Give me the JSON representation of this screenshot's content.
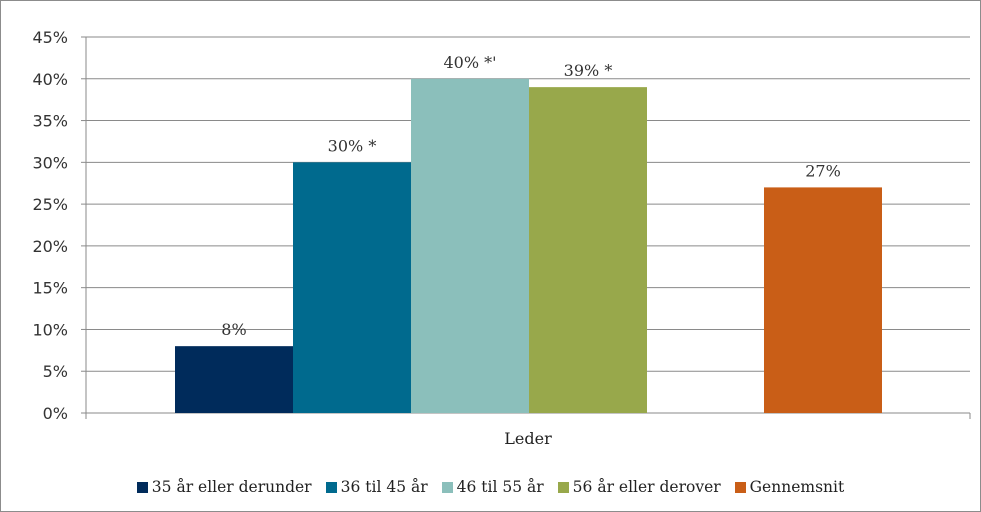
{
  "chart_data": {
    "type": "bar",
    "categories": [
      "Leder"
    ],
    "series": [
      {
        "name": "35 år eller derunder",
        "values": [
          8
        ],
        "label": "8%",
        "color": "#002b5b"
      },
      {
        "name": "36 til 45 år",
        "values": [
          30
        ],
        "label": "30% *",
        "color": "#006a8e"
      },
      {
        "name": "46 til 55 år",
        "values": [
          40
        ],
        "label": "40% *'",
        "color": "#8bbfbb"
      },
      {
        "name": "56 år eller derover",
        "values": [
          39
        ],
        "label": "39% *",
        "color": "#98a84b"
      },
      {
        "name": "Gennemsnit",
        "values": [
          27
        ],
        "label": "27%",
        "color": "#c95e17"
      }
    ],
    "ylim": [
      0,
      45
    ],
    "yticks": [
      0,
      5,
      10,
      15,
      20,
      25,
      30,
      35,
      40,
      45
    ],
    "ytick_labels": [
      "0%",
      "5%",
      "10%",
      "15%",
      "20%",
      "25%",
      "30%",
      "35%",
      "40%",
      "45%"
    ],
    "grid": true,
    "legend_position": "bottom"
  }
}
